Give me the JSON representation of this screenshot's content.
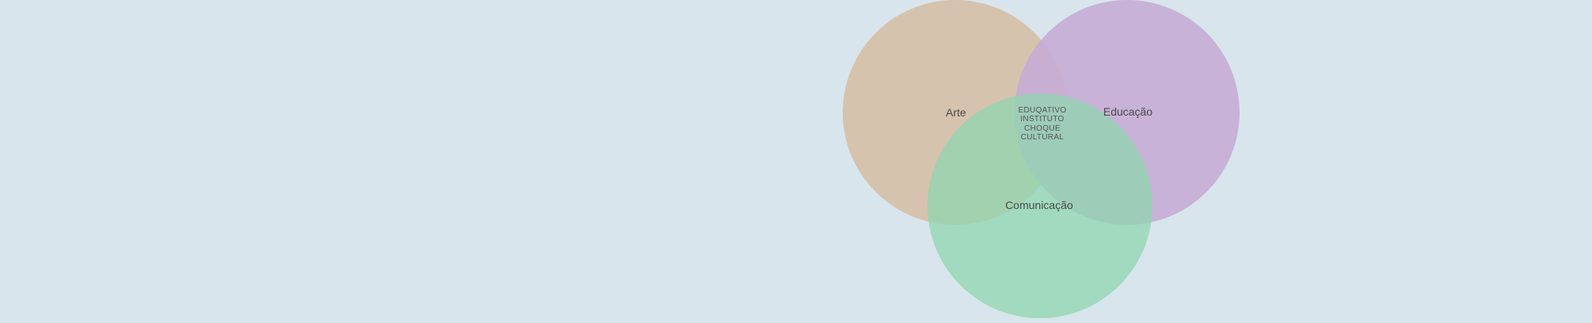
{
  "background": "#d8e5ec",
  "venn": {
    "sets": [
      {
        "id": "arte",
        "label": "Arte",
        "color": "#d6bfa7",
        "icon": "circle-arte"
      },
      {
        "id": "educacao",
        "label": "Educação",
        "color": "#c7acd5",
        "icon": "circle-educacao"
      },
      {
        "id": "comunicacao",
        "label": "Comunicação",
        "color": "#8fd6af",
        "icon": "circle-comunicacao"
      }
    ],
    "center_lines": [
      "EDUQATIVO",
      "INSTITUTO",
      "CHOQUE",
      "CULTURAL"
    ]
  }
}
